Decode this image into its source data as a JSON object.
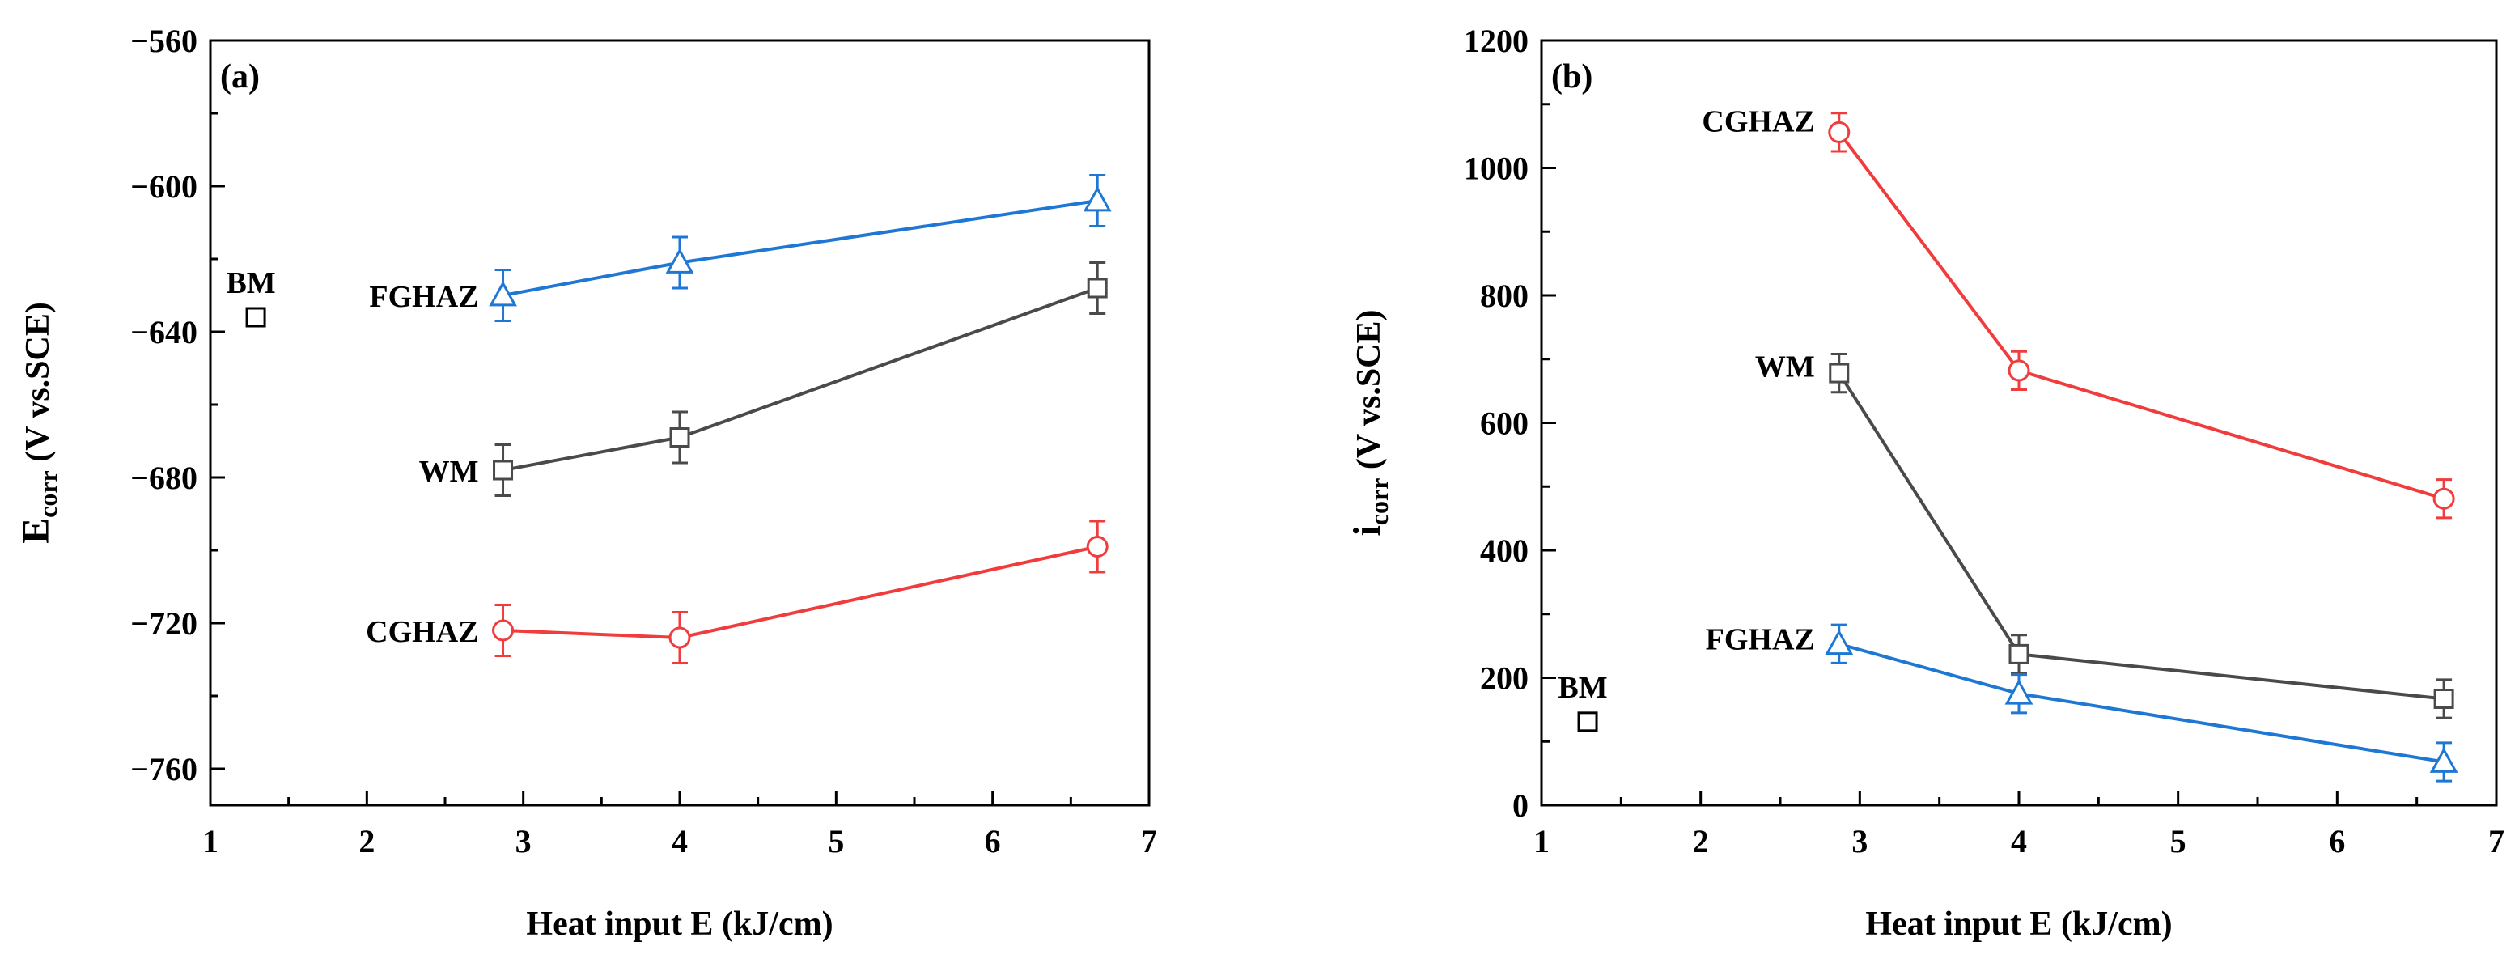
{
  "chart_data": [
    {
      "type": "line",
      "panel_label": "(a)",
      "xlabel": "Heat input E (kJ/cm)",
      "ylabel_main": "E",
      "ylabel_sub": "corr",
      "ylabel_rest": " (V vs.SCE)",
      "xlim": [
        1,
        7
      ],
      "ylim": [
        -770,
        -560
      ],
      "xticks": [
        1,
        2,
        3,
        4,
        5,
        6,
        7
      ],
      "xtick_labels": [
        "1",
        "2",
        "3",
        "4",
        "5",
        "6",
        "7"
      ],
      "yticks": [
        -560,
        -600,
        -640,
        -680,
        -720,
        -760
      ],
      "ytick_labels": [
        "−560",
        "−600",
        "−640",
        "−680",
        "−720",
        "−760"
      ],
      "y_minor_step": 20,
      "x_minor_step": 0.5,
      "series": [
        {
          "name": "FGHAZ",
          "color": "#1f77d4",
          "marker": "triangle",
          "x": [
            2.87,
            4.0,
            6.67
          ],
          "y": [
            -630,
            -621,
            -604
          ],
          "err": [
            7,
            7,
            7
          ],
          "label_at": [
            2.87,
            -630
          ]
        },
        {
          "name": "WM",
          "color": "#4a4a4a",
          "marker": "square",
          "x": [
            2.87,
            4.0,
            6.67
          ],
          "y": [
            -678,
            -669,
            -628
          ],
          "err": [
            7,
            7,
            7
          ],
          "label_at": [
            2.87,
            -678
          ]
        },
        {
          "name": "CGHAZ",
          "color": "#f03c3c",
          "marker": "circle",
          "x": [
            2.87,
            4.0,
            6.67
          ],
          "y": [
            -722,
            -724,
            -699
          ],
          "err": [
            7,
            7,
            7
          ],
          "label_at": [
            2.87,
            -722
          ]
        },
        {
          "name": "BM",
          "color": "#000000",
          "marker": "square",
          "x": [
            1.29
          ],
          "y": [
            -636
          ],
          "err": [
            0
          ],
          "label_above": true
        }
      ]
    },
    {
      "type": "line",
      "panel_label": "(b)",
      "xlabel": "Heat input E (kJ/cm)",
      "ylabel_main": "i",
      "ylabel_sub": "corr",
      "ylabel_rest": " (V vs.SCE)",
      "xlim": [
        1,
        7
      ],
      "ylim": [
        0,
        1200
      ],
      "xticks": [
        1,
        2,
        3,
        4,
        5,
        6,
        7
      ],
      "xtick_labels": [
        "1",
        "2",
        "3",
        "4",
        "5",
        "6",
        "7"
      ],
      "yticks": [
        0,
        200,
        400,
        600,
        800,
        1000,
        1200
      ],
      "ytick_labels": [
        "0",
        "200",
        "400",
        "600",
        "800",
        "1000",
        "1200"
      ],
      "y_minor_step": 100,
      "x_minor_step": 0.5,
      "series": [
        {
          "name": "CGHAZ",
          "color": "#f03c3c",
          "marker": "circle",
          "x": [
            2.87,
            4.0,
            6.67
          ],
          "y": [
            1056,
            682,
            481
          ],
          "err": [
            30,
            30,
            30
          ],
          "label_at": [
            2.87,
            1075
          ]
        },
        {
          "name": "WM",
          "color": "#4a4a4a",
          "marker": "square",
          "x": [
            2.87,
            4.0,
            6.67
          ],
          "y": [
            678,
            237,
            167
          ],
          "err": [
            30,
            30,
            30
          ],
          "label_at": [
            2.87,
            690
          ]
        },
        {
          "name": "FGHAZ",
          "color": "#1f77d4",
          "marker": "triangle",
          "x": [
            2.87,
            4.0,
            6.67
          ],
          "y": [
            253,
            175,
            68
          ],
          "err": [
            30,
            30,
            30
          ],
          "label_at": [
            2.87,
            262
          ]
        },
        {
          "name": "BM",
          "color": "#000000",
          "marker": "square",
          "x": [
            1.29
          ],
          "y": [
            131
          ],
          "err": [
            0
          ],
          "label_above": true
        }
      ]
    }
  ]
}
